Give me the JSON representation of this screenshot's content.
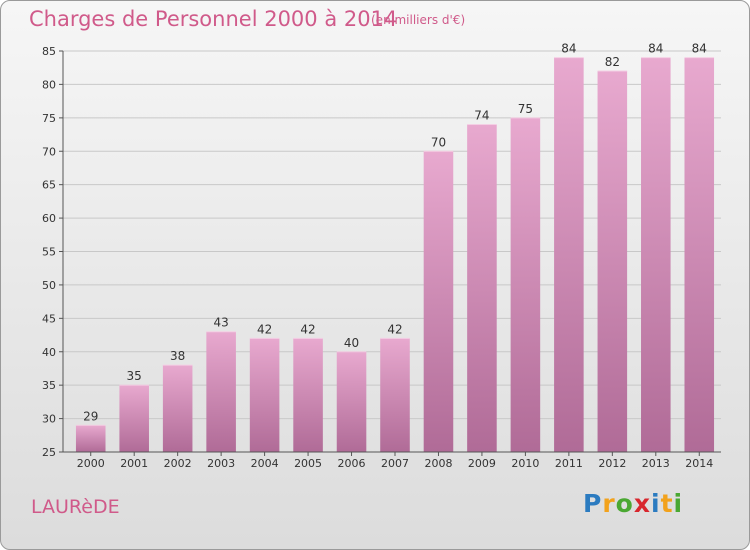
{
  "title": "Charges de Personnel 2000 à 2014",
  "subtitle": "(en milliers d'€)",
  "commune": "LAURèDE",
  "logo": {
    "letters": [
      "P",
      "r",
      "o",
      "x",
      "i",
      "t",
      "i"
    ],
    "colors": [
      "#2b7bc0",
      "#f2a21c",
      "#4aa832",
      "#d8262d",
      "#2b7bc0",
      "#f2a21c",
      "#4aa832"
    ]
  },
  "colors": {
    "bar_top": "#e8a9cf",
    "bar_bottom": "#b06b97",
    "text_accent": "#d05a8a"
  },
  "chart_data": {
    "type": "bar",
    "title": "Charges de Personnel 2000 à 2014",
    "subtitle": "(en milliers d'€)",
    "xlabel": "",
    "ylabel": "",
    "categories": [
      "2000",
      "2001",
      "2002",
      "2003",
      "2004",
      "2005",
      "2006",
      "2007",
      "2008",
      "2009",
      "2010",
      "2011",
      "2012",
      "2013",
      "2014"
    ],
    "values": [
      29,
      35,
      38,
      43,
      42,
      42,
      40,
      42,
      70,
      74,
      75,
      84,
      82,
      84,
      84
    ],
    "ylim": [
      25,
      85
    ],
    "yticks": [
      25,
      30,
      35,
      40,
      45,
      50,
      55,
      60,
      65,
      70,
      75,
      80,
      85
    ],
    "grid": true,
    "legend": "none"
  }
}
